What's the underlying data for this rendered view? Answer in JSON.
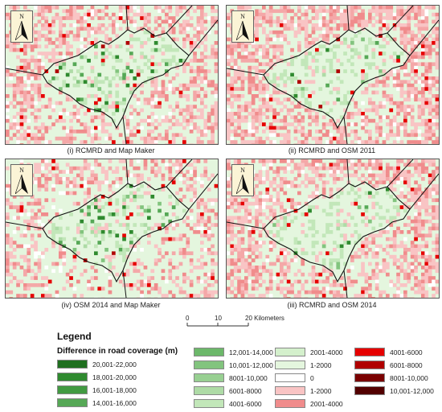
{
  "panels": [
    {
      "id": "p1",
      "caption": "(i) RCMRD and Map Maker",
      "seed": 11,
      "density": 0.34,
      "greens": 0.08
    },
    {
      "id": "p2",
      "caption": "(ii) RCMRD and OSM 2011",
      "seed": 23,
      "density": 0.48,
      "greens": 0.04
    },
    {
      "id": "p3",
      "caption": "(iv) OSM 2014 and Map Maker",
      "seed": 37,
      "density": 0.22,
      "greens": 0.1
    },
    {
      "id": "p4",
      "caption": "(iii) RCMRD and OSM 2014",
      "seed": 51,
      "density": 0.4,
      "greens": 0.05
    }
  ],
  "north_label": "N",
  "scalebar": {
    "ticks": [
      "0",
      "10",
      "20 Kilometers"
    ]
  },
  "legend": {
    "title": "Legend",
    "subtitle": "Difference in road coverage (m)",
    "columns": [
      [
        {
          "label": "20,001-22,000",
          "color": "#1f6f1f"
        },
        {
          "label": "18,001-20,000",
          "color": "#2f8a2f"
        },
        {
          "label": "16,001-18,000",
          "color": "#429a42"
        },
        {
          "label": "14,001-16,000",
          "color": "#56a856"
        }
      ],
      [
        {
          "label": "12,001-14,000",
          "color": "#6cb86a"
        },
        {
          "label": "10,001-12,000",
          "color": "#82c47e"
        },
        {
          "label": "8001-10,000",
          "color": "#98d092"
        },
        {
          "label": "6001-8000",
          "color": "#aedba6"
        },
        {
          "label": "4001-6000",
          "color": "#c2e7b9"
        }
      ],
      [
        {
          "label": "2001-4000",
          "color": "#d4f0cc"
        },
        {
          "label": "1-2000",
          "color": "#e4f6de"
        },
        {
          "label": "0",
          "color": "#ffffff"
        },
        {
          "label": "1-2000",
          "color": "#f9c4c4"
        },
        {
          "label": "2001-4000",
          "color": "#f08c8c"
        }
      ],
      [
        {
          "label": "4001-6000",
          "color": "#e60000"
        },
        {
          "label": "6001-8000",
          "color": "#b00000"
        },
        {
          "label": "8001-10,000",
          "color": "#7a0000"
        },
        {
          "label": "10,001-12,000",
          "color": "#520000"
        }
      ]
    ]
  }
}
